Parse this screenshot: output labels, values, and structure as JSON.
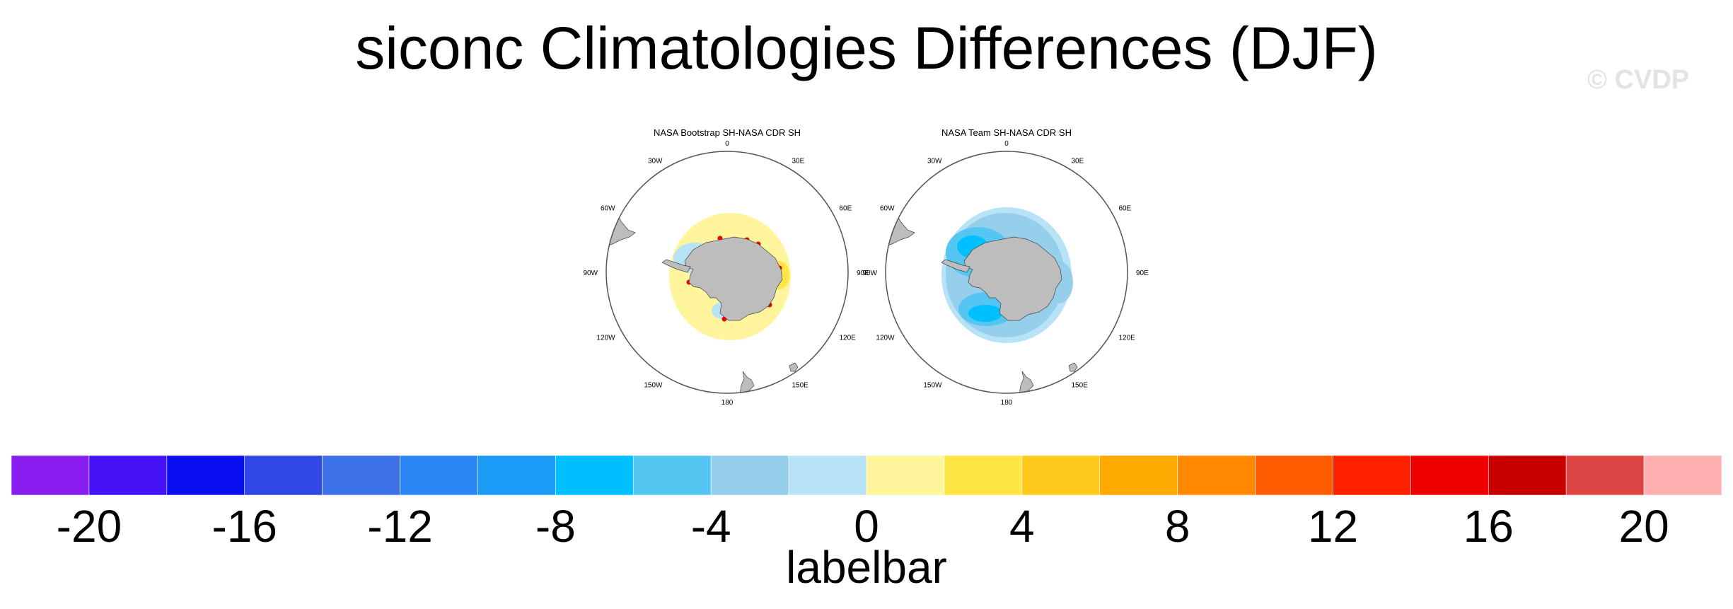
{
  "title": "siconc Climatologies Differences (DJF)",
  "watermark": "© CVDP",
  "panels": [
    {
      "title": "NASA Bootstrap SH-NASA CDR SH",
      "pattern": "positive"
    },
    {
      "title": "NASA Team SH-NASA CDR SH",
      "pattern": "negative"
    }
  ],
  "longitude_labels": [
    "0",
    "30E",
    "60E",
    "90E",
    "120E",
    "150E",
    "180",
    "150W",
    "120W",
    "90W",
    "60W",
    "30W"
  ],
  "labelbar": {
    "title": "labelbar",
    "tick_labels": [
      "-20",
      "-16",
      "-12",
      "-8",
      "-4",
      "0",
      "4",
      "8",
      "12",
      "16",
      "20"
    ],
    "colors": [
      "#8a1ef0",
      "#4412f5",
      "#0a0ff2",
      "#2f48e6",
      "#3c72e6",
      "#2a86f5",
      "#1a9cf7",
      "#00bfff",
      "#55c6f2",
      "#96cfec",
      "#b8e2f5",
      "#fff59c",
      "#ffe545",
      "#ffc81c",
      "#ffaa00",
      "#ff8800",
      "#ff5c00",
      "#ff2000",
      "#ee0000",
      "#c90000",
      "#dd4444",
      "#ffb0b0"
    ]
  },
  "colors": {
    "land": "#bdbdbd",
    "ocean": "#ffffff",
    "outline": "#555555"
  }
}
